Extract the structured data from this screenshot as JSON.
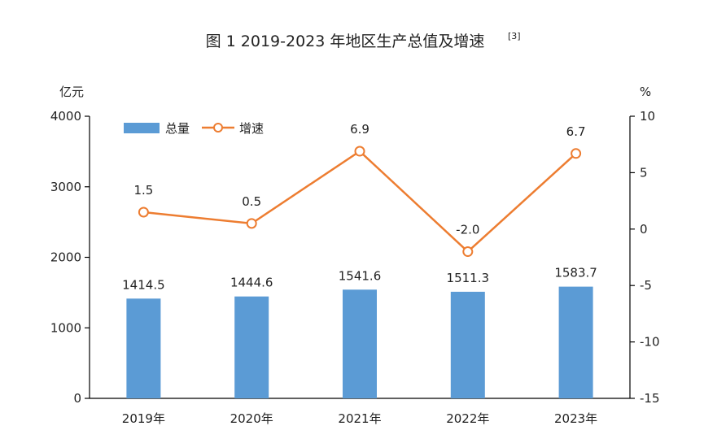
{
  "chart_data": {
    "type": "bar",
    "title": "图 1 2019-2023 年地区生产总值及增速",
    "title_note": "[3]",
    "categories": [
      "2019年",
      "2020年",
      "2021年",
      "2022年",
      "2023年"
    ],
    "series": [
      {
        "name": "总量",
        "type": "bar",
        "axis": "left",
        "values": [
          1414.5,
          1444.6,
          1541.6,
          1511.3,
          1583.7
        ],
        "labels": [
          "1414.5",
          "1444.6",
          "1541.6",
          "1511.3",
          "1583.7"
        ],
        "color": "#5b9bd5"
      },
      {
        "name": "增速",
        "type": "line",
        "axis": "right",
        "values": [
          1.5,
          0.5,
          6.9,
          -2.0,
          6.7
        ],
        "labels": [
          "1.5",
          "0.5",
          "6.9",
          "-2.0",
          "6.7"
        ],
        "color": "#ed7d31"
      }
    ],
    "y_left": {
      "unit": "亿元",
      "ylim": [
        0,
        4000
      ],
      "ticks": [
        0,
        1000,
        2000,
        3000,
        4000
      ]
    },
    "y_right": {
      "unit": "%",
      "ylim": [
        -15,
        10
      ],
      "ticks": [
        -15,
        -10,
        -5,
        0,
        5,
        10
      ]
    },
    "grid": false,
    "legend_position": "top-left"
  }
}
